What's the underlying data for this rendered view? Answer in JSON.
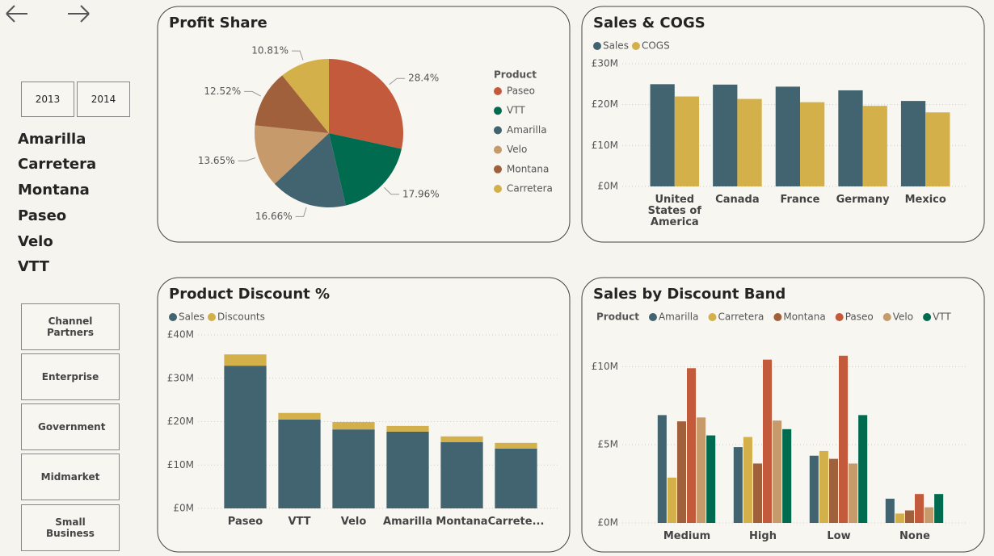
{
  "slicers": {
    "years": [
      "2013",
      "2014"
    ],
    "products": [
      "Amarilla",
      "Carretera",
      "Montana",
      "Paseo",
      "Velo",
      "VTT"
    ],
    "segments": [
      "Channel Partners",
      "Enterprise",
      "Government",
      "Midmarket",
      "Small Business"
    ]
  },
  "chart_data": [
    {
      "type": "pie",
      "title": "Profit Share",
      "legend_title": "Product",
      "categories": [
        "Paseo",
        "VTT",
        "Amarilla",
        "Velo",
        "Montana",
        "Carretera"
      ],
      "values": [
        28.4,
        17.96,
        16.66,
        13.65,
        12.52,
        10.81
      ],
      "value_labels": [
        "28.4%",
        "17.96%",
        "16.66%",
        "13.65%",
        "12.52%",
        "10.81%"
      ],
      "colors": [
        "#c35a3c",
        "#006b4f",
        "#426470",
        "#c79a6b",
        "#a0603c",
        "#d4b04a"
      ]
    },
    {
      "type": "bar",
      "title": "Sales & COGS",
      "categories": [
        "United States of America",
        "Canada",
        "France",
        "Germany",
        "Mexico"
      ],
      "series": [
        {
          "name": "Sales",
          "color": "#426470",
          "values": [
            25.0,
            24.9,
            24.4,
            23.5,
            20.9
          ]
        },
        {
          "name": "COGS",
          "color": "#d4b04a",
          "values": [
            22.0,
            21.4,
            20.6,
            19.7,
            18.1
          ]
        }
      ],
      "ylim": [
        0,
        30
      ],
      "yticks": [
        {
          "value": 0,
          "label": "£0M"
        },
        {
          "value": 10,
          "label": "£10M"
        },
        {
          "value": 20,
          "label": "£20M"
        },
        {
          "value": 30,
          "label": "£30M"
        }
      ],
      "grid": true
    },
    {
      "type": "stacked_bar",
      "title": "Product Discount %",
      "categories": [
        "Paseo",
        "VTT",
        "Velo",
        "Amarilla",
        "Montana",
        "Carrete..."
      ],
      "series": [
        {
          "name": "Sales",
          "color": "#426470",
          "values": [
            32.9,
            20.5,
            18.2,
            17.7,
            15.3,
            13.8
          ]
        },
        {
          "name": "Discounts",
          "color": "#d4b04a",
          "values": [
            2.6,
            1.5,
            1.7,
            1.3,
            1.3,
            1.3
          ]
        }
      ],
      "ylim": [
        0,
        40
      ],
      "yticks": [
        {
          "value": 0,
          "label": "£0M"
        },
        {
          "value": 10,
          "label": "£10M"
        },
        {
          "value": 20,
          "label": "£20M"
        },
        {
          "value": 30,
          "label": "£30M"
        },
        {
          "value": 40,
          "label": "£40M"
        }
      ],
      "grid": true
    },
    {
      "type": "bar",
      "title": "Sales by Discount Band",
      "legend_title": "Product",
      "categories": [
        "Medium",
        "High",
        "Low",
        "None"
      ],
      "series": [
        {
          "name": "Amarilla",
          "color": "#426470",
          "values": [
            6.9,
            4.85,
            4.3,
            1.55
          ]
        },
        {
          "name": "Carretera",
          "color": "#d4b04a",
          "values": [
            2.9,
            5.5,
            4.6,
            0.6
          ]
        },
        {
          "name": "Montana",
          "color": "#a0603c",
          "values": [
            6.5,
            3.8,
            4.1,
            0.8
          ]
        },
        {
          "name": "Paseo",
          "color": "#c35a3c",
          "values": [
            9.9,
            10.45,
            10.7,
            1.85
          ]
        },
        {
          "name": "Velo",
          "color": "#c79a6b",
          "values": [
            6.75,
            6.55,
            3.8,
            1.0
          ]
        },
        {
          "name": "VTT",
          "color": "#006b4f",
          "values": [
            5.6,
            6.0,
            6.9,
            1.85
          ]
        }
      ],
      "ylim": [
        0,
        11
      ],
      "yticks": [
        {
          "value": 0,
          "label": "£0M"
        },
        {
          "value": 5,
          "label": "£5M"
        },
        {
          "value": 10,
          "label": "£10M"
        }
      ],
      "grid": true
    }
  ]
}
